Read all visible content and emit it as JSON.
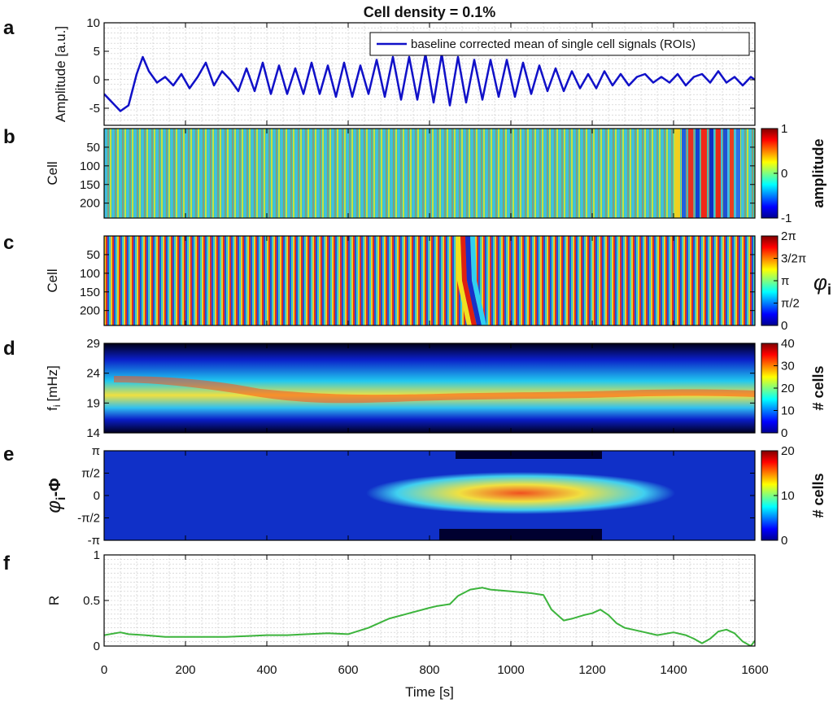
{
  "figure": {
    "title": "Cell density = 0.1%",
    "xlabel": "Time [s]",
    "x_ticks": [
      "0",
      "200",
      "400",
      "600",
      "800",
      "1000",
      "1200",
      "1400",
      "1600"
    ],
    "x_tick_values": [
      0,
      200,
      400,
      600,
      800,
      1000,
      1200,
      1400,
      1600
    ],
    "xlim": [
      0,
      1600
    ]
  },
  "chart_data": [
    {
      "panel": "a",
      "type": "line",
      "ylabel": "Amplitude [a.u.]",
      "ylim": [
        -8,
        10
      ],
      "y_ticks": [
        "-5",
        "0",
        "5",
        "10"
      ],
      "y_tick_values": [
        -5,
        0,
        5,
        10
      ],
      "grid": true,
      "legend": "top-right",
      "color": "#1010c8",
      "series": [
        {
          "name": "baseline corrected mean of single cell signals (ROIs)",
          "x": [
            0,
            20,
            40,
            60,
            80,
            95,
            110,
            130,
            150,
            170,
            190,
            210,
            230,
            250,
            270,
            290,
            310,
            330,
            350,
            370,
            390,
            410,
            430,
            450,
            470,
            490,
            510,
            530,
            550,
            570,
            590,
            610,
            630,
            650,
            670,
            690,
            710,
            730,
            750,
            770,
            790,
            810,
            830,
            850,
            870,
            890,
            910,
            930,
            950,
            970,
            990,
            1010,
            1030,
            1050,
            1070,
            1090,
            1110,
            1130,
            1150,
            1170,
            1190,
            1210,
            1230,
            1250,
            1270,
            1290,
            1310,
            1330,
            1350,
            1370,
            1390,
            1410,
            1430,
            1450,
            1470,
            1490,
            1510,
            1530,
            1550,
            1570,
            1590,
            1600
          ],
          "values": [
            -2.5,
            -4.0,
            -5.5,
            -4.5,
            1.0,
            4.0,
            1.5,
            -0.5,
            0.5,
            -1.0,
            1.0,
            -1.5,
            0.5,
            3.0,
            -1.0,
            1.5,
            0.0,
            -2.0,
            2.0,
            -2.0,
            3.0,
            -2.5,
            2.5,
            -2.5,
            2.0,
            -2.5,
            3.0,
            -2.5,
            2.5,
            -3.0,
            3.0,
            -3.0,
            2.5,
            -2.5,
            3.5,
            -3.0,
            4.0,
            -3.5,
            4.0,
            -3.5,
            4.5,
            -4.0,
            4.5,
            -4.5,
            4.0,
            -4.0,
            3.5,
            -3.5,
            3.5,
            -3.0,
            3.5,
            -3.0,
            3.0,
            -2.5,
            2.5,
            -2.0,
            2.0,
            -2.0,
            1.5,
            -1.5,
            1.0,
            -1.5,
            1.5,
            -1.0,
            1.0,
            -1.0,
            0.5,
            1.0,
            -0.5,
            0.5,
            -0.5,
            1.0,
            -1.0,
            0.5,
            1.0,
            -0.5,
            1.5,
            -0.5,
            0.5,
            -1.0,
            0.5,
            0.0
          ]
        }
      ]
    },
    {
      "panel": "b",
      "type": "heatmap",
      "ylabel": "Cell",
      "y_ticks": [
        "50",
        "100",
        "150",
        "200"
      ],
      "y_tick_values": [
        50,
        100,
        150,
        200
      ],
      "ylim": [
        0,
        240
      ],
      "colorbar": {
        "label": "amplitude",
        "ticks": [
          "-1",
          "0",
          "1"
        ],
        "tick_values": [
          -1,
          0,
          1
        ],
        "range": [
          -1,
          1
        ],
        "colormap": "jet"
      }
    },
    {
      "panel": "c",
      "type": "heatmap",
      "ylabel": "Cell",
      "y_ticks": [
        "50",
        "100",
        "150",
        "200"
      ],
      "y_tick_values": [
        50,
        100,
        150,
        200
      ],
      "ylim": [
        0,
        240
      ],
      "colorbar": {
        "label": "φ",
        "label_sub": "i",
        "ticks": [
          "0",
          "π/2",
          "π",
          "3/2π",
          "2π"
        ],
        "tick_values": [
          0,
          0.25,
          0.5,
          0.75,
          1
        ],
        "range": [
          0,
          1
        ],
        "colormap": "jet"
      }
    },
    {
      "panel": "d",
      "type": "heatmap",
      "ylabel": "f",
      "ylabel_sub": "i",
      "ylabel_unit": "[mHz]",
      "y_ticks": [
        "14",
        "19",
        "24",
        "29"
      ],
      "y_tick_values": [
        14,
        19,
        24,
        29
      ],
      "ylim": [
        14,
        29
      ],
      "colorbar": {
        "label": "# cells",
        "ticks": [
          "0",
          "10",
          "20",
          "30",
          "40"
        ],
        "tick_values": [
          0,
          10,
          20,
          30,
          40
        ],
        "range": [
          0,
          40
        ],
        "colormap": "jet"
      }
    },
    {
      "panel": "e",
      "type": "heatmap",
      "ylabel": "φ",
      "ylabel_sub": "i",
      "ylabel_tail": "-Φ",
      "y_ticks": [
        "-π",
        "-π/2",
        "0",
        "π/2",
        "π"
      ],
      "y_tick_values": [
        -1,
        -0.5,
        0,
        0.5,
        1
      ],
      "ylim": [
        -1,
        1
      ],
      "colorbar": {
        "label": "# cells",
        "ticks": [
          "0",
          "10",
          "20"
        ],
        "tick_values": [
          0,
          10,
          20
        ],
        "range": [
          0,
          20
        ],
        "colormap": "jet"
      }
    },
    {
      "panel": "f",
      "type": "line",
      "ylabel": "R",
      "ylim": [
        0,
        1
      ],
      "y_ticks": [
        "0",
        "0.5",
        "1"
      ],
      "y_tick_values": [
        0,
        0.5,
        1
      ],
      "grid": true,
      "color": "#3cb43c",
      "series": [
        {
          "x": [
            0,
            40,
            60,
            100,
            150,
            200,
            250,
            300,
            350,
            400,
            450,
            500,
            550,
            600,
            650,
            700,
            750,
            800,
            820,
            850,
            870,
            900,
            930,
            950,
            1000,
            1050,
            1080,
            1100,
            1130,
            1150,
            1180,
            1200,
            1220,
            1240,
            1260,
            1280,
            1300,
            1330,
            1360,
            1400,
            1430,
            1450,
            1470,
            1490,
            1510,
            1530,
            1550,
            1570,
            1590,
            1600
          ],
          "values": [
            0.12,
            0.15,
            0.13,
            0.12,
            0.1,
            0.1,
            0.1,
            0.1,
            0.11,
            0.12,
            0.12,
            0.13,
            0.14,
            0.13,
            0.2,
            0.3,
            0.36,
            0.42,
            0.44,
            0.46,
            0.55,
            0.62,
            0.64,
            0.62,
            0.6,
            0.58,
            0.56,
            0.4,
            0.28,
            0.3,
            0.34,
            0.36,
            0.4,
            0.34,
            0.25,
            0.2,
            0.18,
            0.15,
            0.12,
            0.15,
            0.12,
            0.08,
            0.03,
            0.08,
            0.16,
            0.18,
            0.14,
            0.05,
            0.0,
            0.06
          ]
        }
      ]
    }
  ]
}
